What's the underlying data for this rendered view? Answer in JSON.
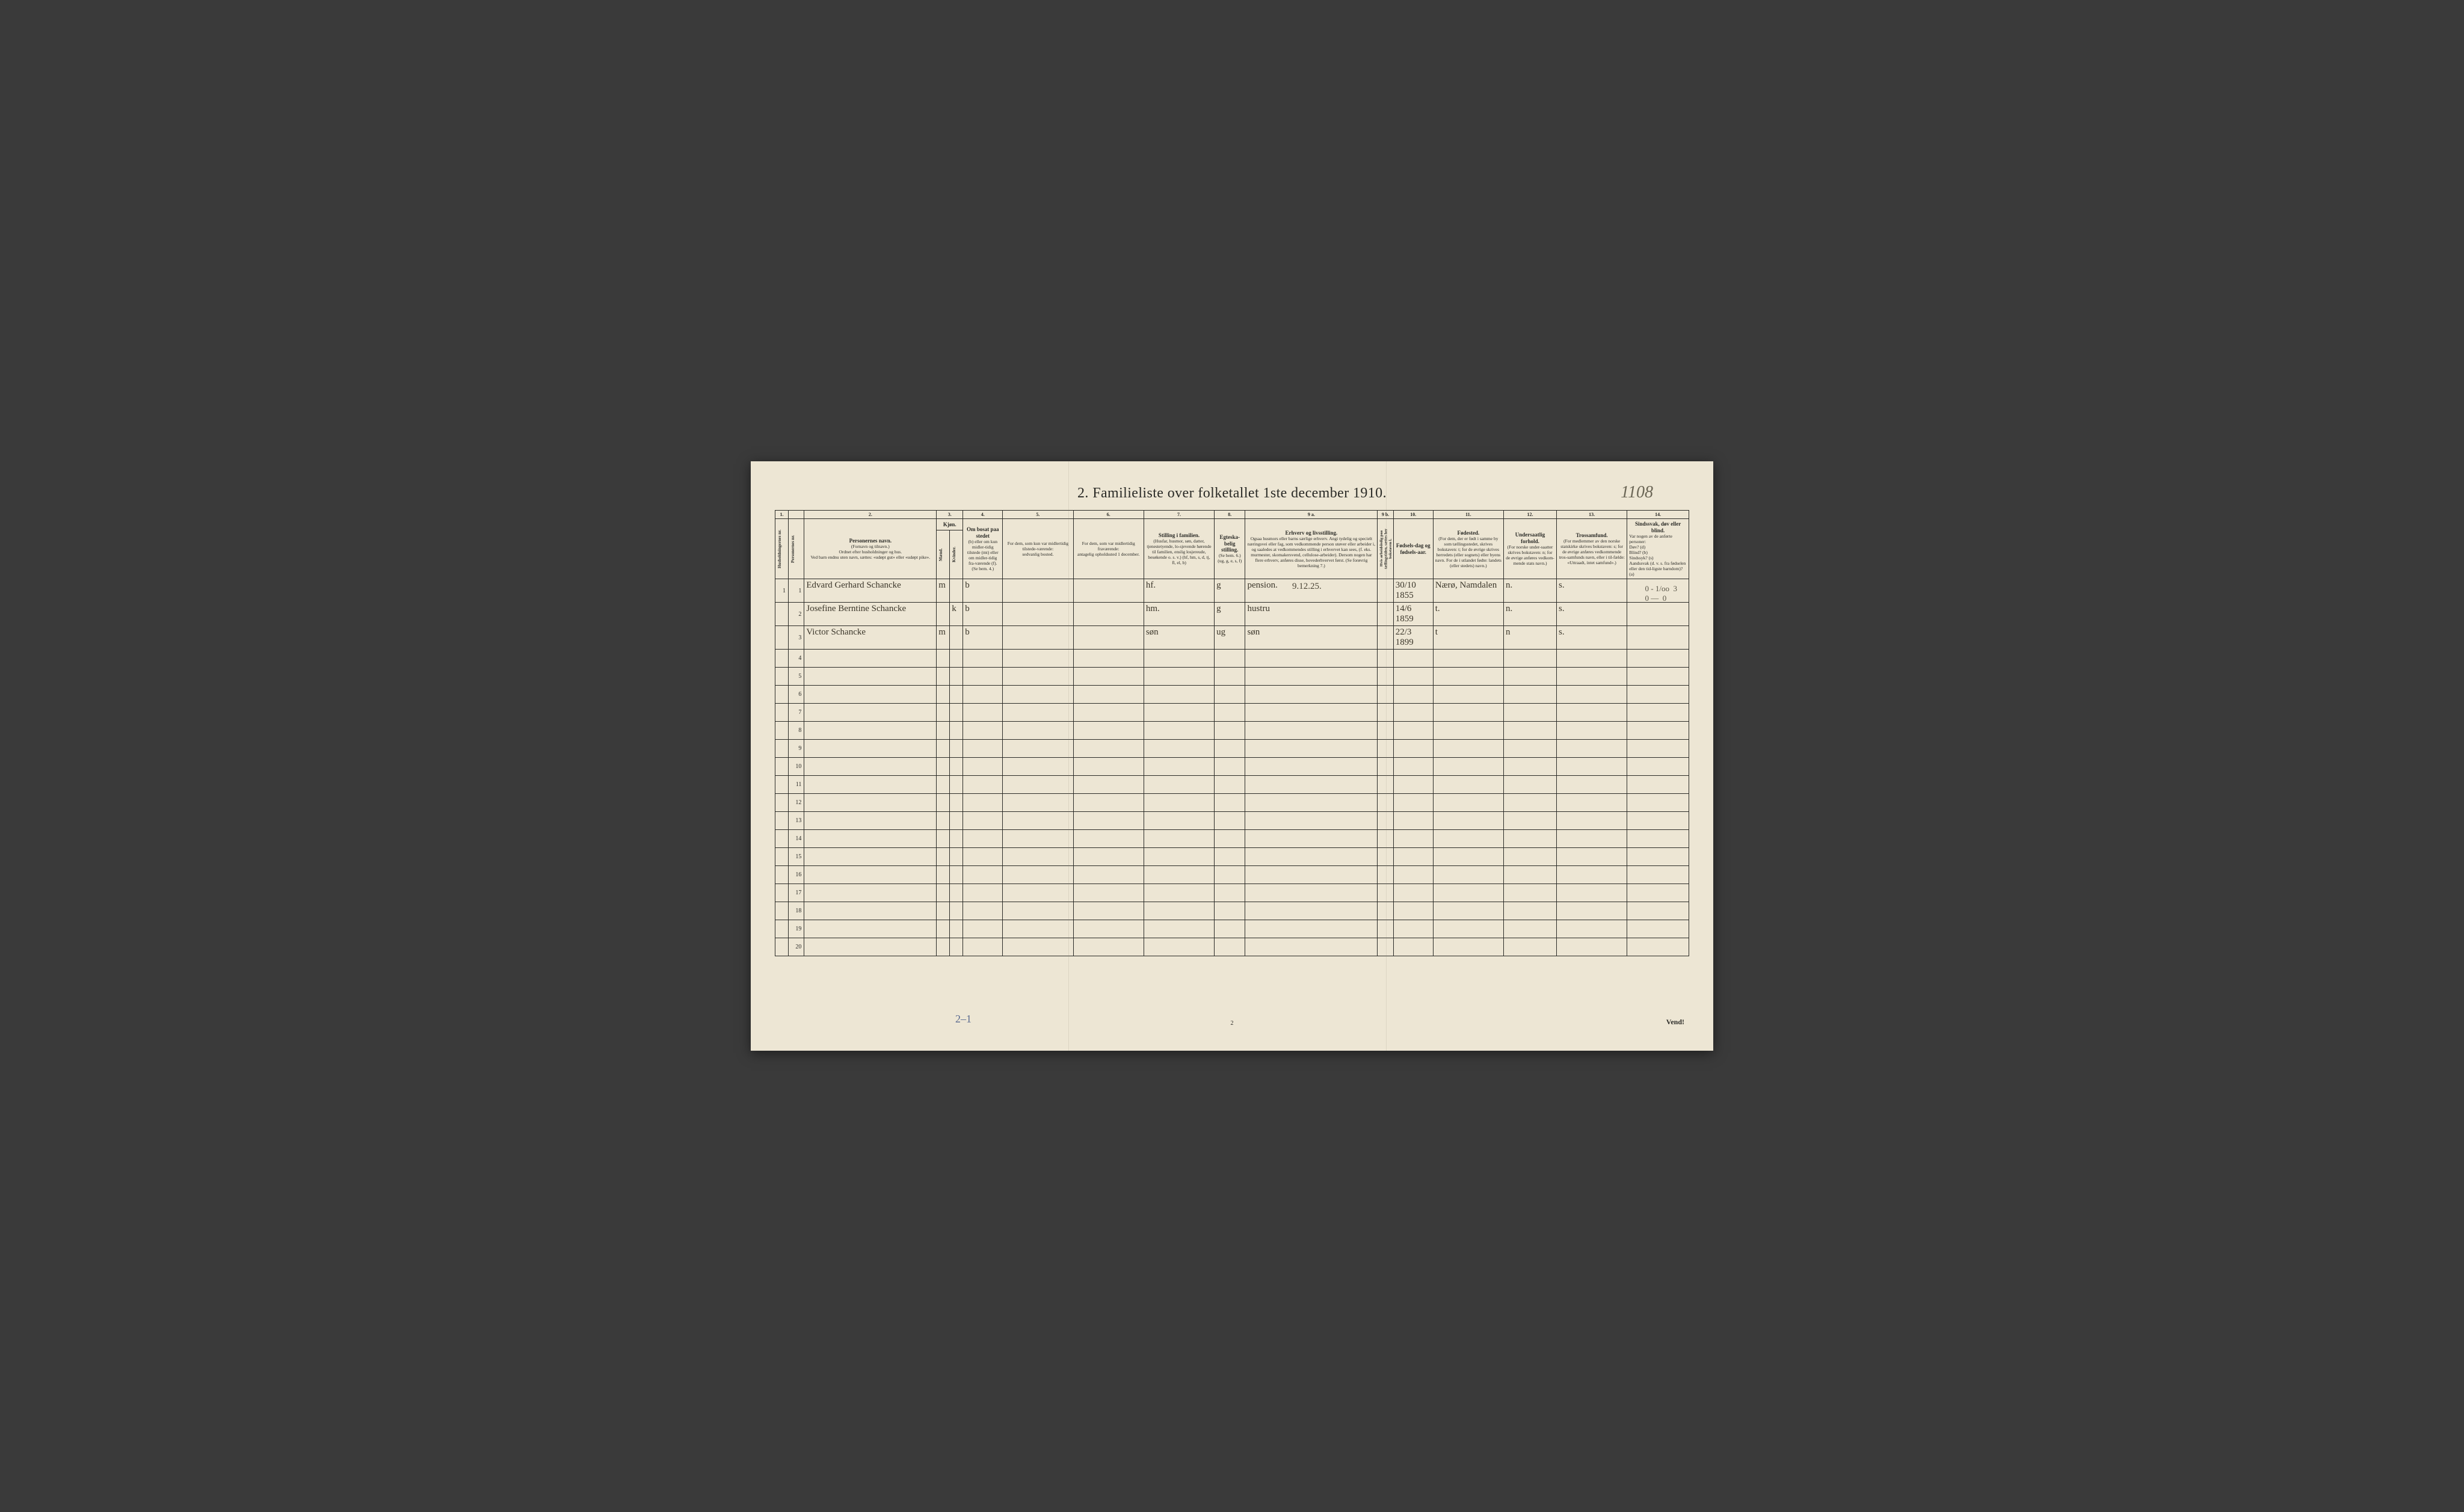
{
  "title": "2.   Familieliste over folketallet 1ste december 1910.",
  "topAnnotation": "1108",
  "dateAnnotation": "9.12.25.",
  "marginNote": "0 - 1/oo  3\n0 —  0",
  "footerAnnotation": "2–1",
  "pageNumber": "2",
  "vend": "Vend!",
  "colNumbers": [
    "1.",
    "",
    "2.",
    "3.",
    "",
    "4.",
    "5.",
    "6.",
    "7.",
    "8.",
    "9 a.",
    "9 b.",
    "10.",
    "11.",
    "12.",
    "13.",
    "14."
  ],
  "headers": {
    "c1": "Husholdningernes nr.",
    "c2": "Personernes nr.",
    "c3_title": "Personernes navn.",
    "c3_sub": "(Fornavn og tilnavn.)\nOrdnet efter husholdninger og hus.\nVed barn endnu uten navn, sættes: «udøpt gut» eller «udøpt pike».",
    "c4_title": "Kjøn.",
    "c4_sub1": "Mænd.",
    "c4_sub2": "Kvinder.",
    "c4_foot": "m.  k.",
    "c5_title": "Om bosat paa stedet",
    "c5_sub": "(b) eller om kun midler-tidig tilstede (mt) eller om midler-tidig fra-værende (f). (Se bem. 4.)",
    "c6": "For dem, som kun var midlertidig tilstede-værende:\nsedvanlig bosted.",
    "c7": "For dem, som var midlertidig fraværende:\nantagelig opholdssted 1 december.",
    "c8_title": "Stilling i familien.",
    "c8_sub": "(Husfar, husmor, søn, datter, tjenestetyende, lo-sjevende hørende til familien, enslig losjereude, besøkende o. s. v.)\n(hf, hm, s, d, tj, fl, el, b)",
    "c9_title": "Egteska-belig stilling.",
    "c9_sub": "(Se bem. 6.)\n(ug, g, e, s, f)",
    "c10_title": "Erhverv og livsstilling.",
    "c10_sub": "Ogsaa husmors eller barns særlige erhverv. Angi tydelig og specielt næringsvei eller fag, som vedkommende person utøver eller arbeider i, og saaledes at vedkommendes stilling i erhvervet kan sees, (f. eks. murmester, skomakersvend, cellulose-arbeider). Dersom nogen har flere erhverv, anføres disse, hovederhvervet først. (Se forøvrig bemerkning 7.)",
    "c10b": "Hvis arbeidsledig paa tællingstiden, sættes her bokstaven l.",
    "c11_title": "Fødsels-dag og fødsels-aar.",
    "c12_title": "Fødested.",
    "c12_sub": "(For dem, der er født i samme by som tællingsstedet, skrives bokstaven: t; for de øvrige skrives herredets (eller sognets) eller byens navn. For de i utlandet fødte: landets (eller stedets) navn.)",
    "c13_title": "Undersaatlig forhold.",
    "c13_sub": "(For norske under-saatter skrives bokstaven: n; for de øvrige anføres vedkom-mende stats navn.)",
    "c14_title": "Trossamfund.",
    "c14_sub": "(For medlemmer av den norske statskirke skrives bokstaven: s; for de øvrige anføres vedkommende tros-samfunds navn, eller i til-fælde: «Uttraadt, intet samfund».)",
    "c15_title": "Sindssvak, døv eller blind.",
    "c15_sub": "Var nogen av de anførte personer:\nDøv?        (d)\nBlind?       (b)\nSindssyk?  (s)\nAandssvak (d. v. s. fra fødselen eller den tid-ligste barndom)?  (a)"
  },
  "rows": [
    {
      "n": "1",
      "p": "1",
      "name": "Edvard Gerhard Schancke",
      "m": "m",
      "k": "",
      "res": "b",
      "c6": "",
      "c7": "",
      "fam": "hf.",
      "eg": "g",
      "erv": "pension.",
      "l": "",
      "fd": "30/10 1855",
      "fs": "Nærø, Namdalen",
      "us": "n.",
      "ts": "s.",
      "ss": ""
    },
    {
      "n": "",
      "p": "2",
      "name": "Josefine Berntine Schancke",
      "m": "",
      "k": "k",
      "res": "b",
      "c6": "",
      "c7": "",
      "fam": "hm.",
      "eg": "g",
      "erv": "hustru",
      "l": "",
      "fd": "14/6 1859",
      "fs": "t.",
      "us": "n.",
      "ts": "s.",
      "ss": ""
    },
    {
      "n": "",
      "p": "3",
      "name": "Victor Schancke",
      "m": "m",
      "k": "",
      "res": "b",
      "c6": "",
      "c7": "",
      "fam": "søn",
      "eg": "ug",
      "erv": "søn",
      "l": "",
      "fd": "22/3 1899",
      "fs": "t",
      "us": "n",
      "ts": "s.",
      "ss": ""
    }
  ],
  "emptyRowCount": 17,
  "emptyRowStart": 4
}
